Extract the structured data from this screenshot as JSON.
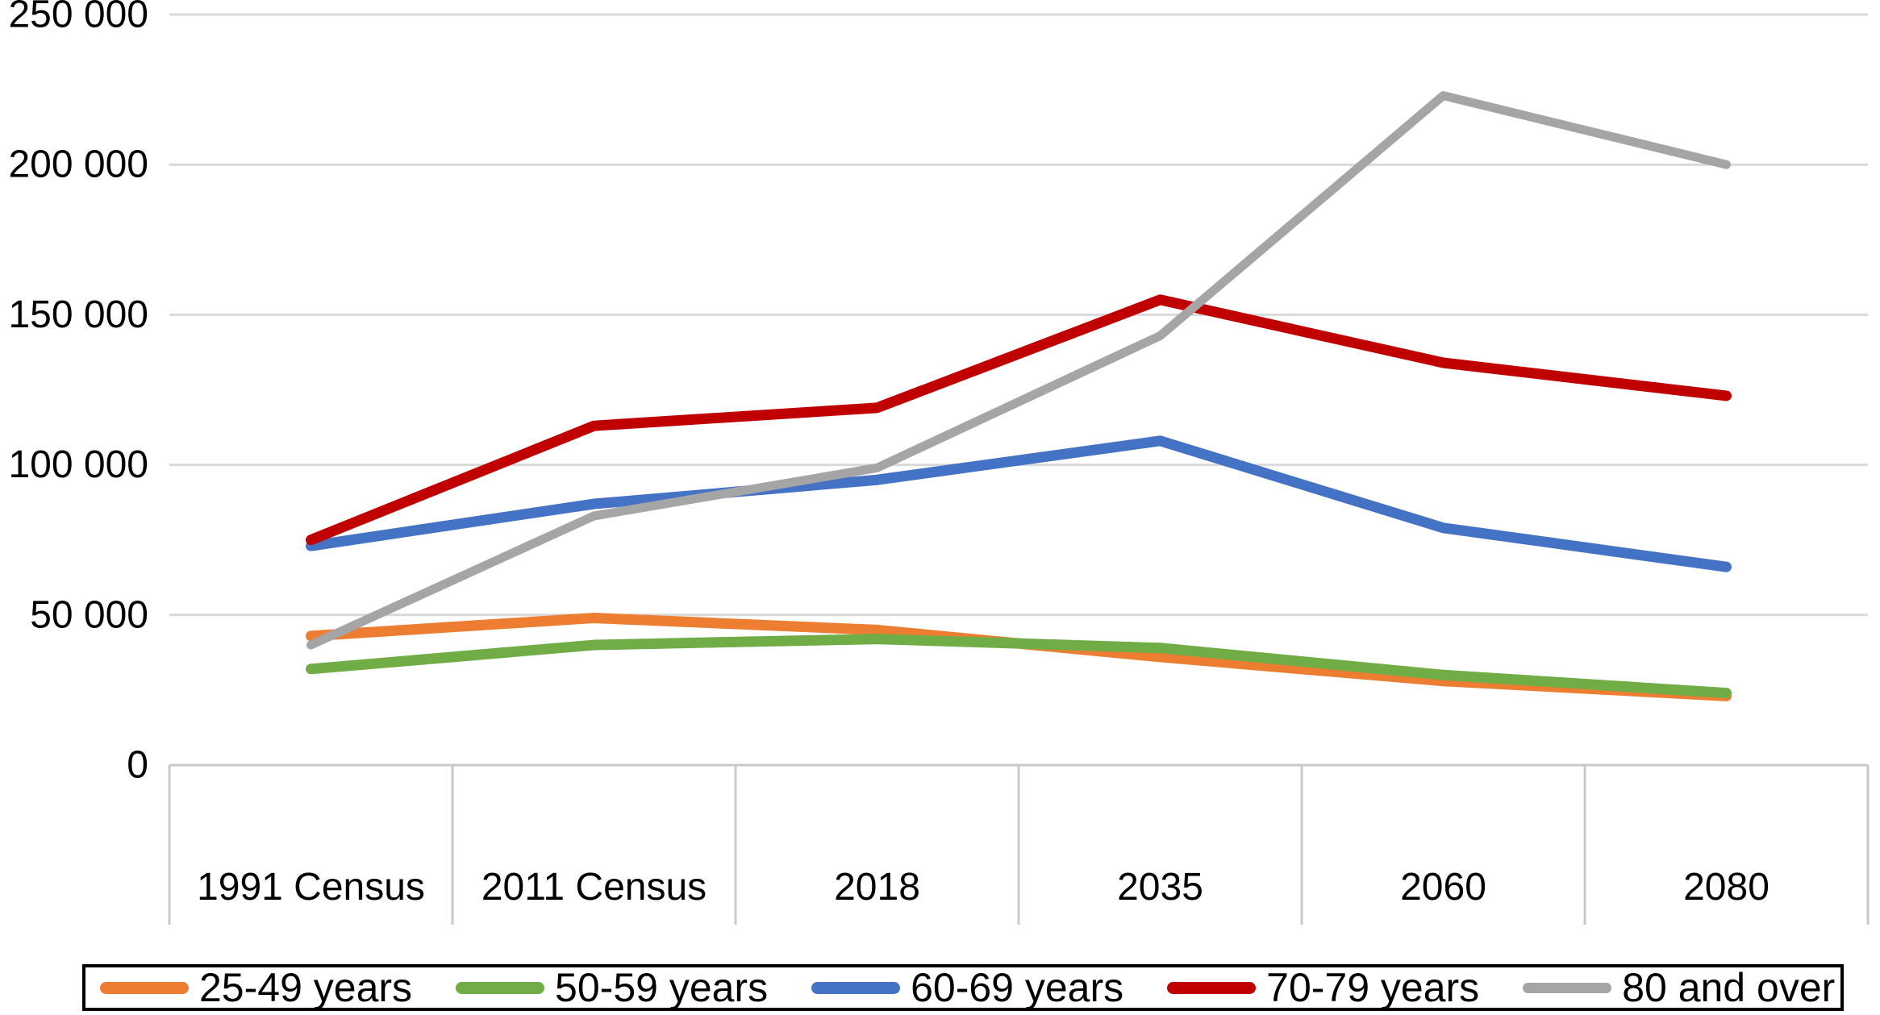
{
  "chart_data": {
    "type": "line",
    "title": "",
    "xlabel": "",
    "ylabel": "",
    "categories": [
      "1991 Census",
      "2011 Census",
      "2018",
      "2035",
      "2060",
      "2080"
    ],
    "series": [
      {
        "name": "25-49 years",
        "color": "#ED7D31",
        "stroke_width": 13,
        "values": [
          43000,
          49000,
          45000,
          36000,
          28000,
          23000
        ]
      },
      {
        "name": "50-59 years",
        "color": "#70AD47",
        "stroke_width": 13,
        "values": [
          32000,
          40000,
          42000,
          39000,
          30000,
          24000
        ]
      },
      {
        "name": "60-69 years",
        "color": "#4472C4",
        "stroke_width": 13,
        "values": [
          73000,
          87000,
          95000,
          108000,
          79000,
          66000
        ]
      },
      {
        "name": "70-79 years",
        "color": "#C00000",
        "stroke_width": 13,
        "values": [
          75000,
          113000,
          119000,
          155000,
          134000,
          123000
        ]
      },
      {
        "name": "80 and over",
        "color": "#A5A5A5",
        "stroke_width": 11,
        "values": [
          40000,
          83000,
          99000,
          143000,
          223000,
          200000
        ]
      }
    ],
    "ylim": [
      0,
      250000
    ],
    "y_ticks": {
      "values": [
        0,
        50000,
        100000,
        150000,
        200000,
        250000
      ],
      "labels": [
        "0",
        "50 000",
        "100 000",
        "150 000",
        "200 000",
        "250 000"
      ]
    },
    "grid": true,
    "legend_position": "bottom",
    "colors": {
      "gridline": "#D9D9D9",
      "axis": "#C9C9C9",
      "text": "#000000",
      "legend_border": "#000000",
      "background": "#FFFFFF"
    }
  }
}
